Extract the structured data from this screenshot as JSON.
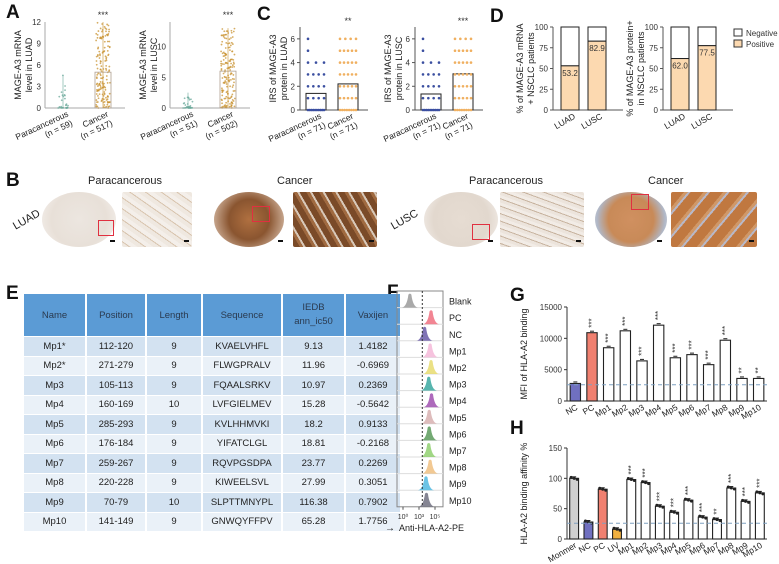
{
  "panels": {
    "A": {
      "letter": "A",
      "charts": [
        {
          "ylabel": [
            "MAGE-A3 mRNA",
            "level  in LUAD"
          ],
          "yticks": [
            "0",
            "3",
            "6",
            "9",
            "12"
          ],
          "ylim": [
            0,
            12
          ],
          "groups": [
            {
              "label": "Paracancerous",
              "n": "(n = 59)",
              "median": 0.1,
              "max": 4.6,
              "color": "#6aa89a"
            },
            {
              "label": "Cancer",
              "n": "(n = 517)",
              "median": 5.0,
              "max": 12,
              "color": "#c8912f"
            }
          ],
          "significance": "***"
        },
        {
          "ylabel": [
            "MAGE-A3 mRNA",
            "level  in LUSC"
          ],
          "yticks": [
            "0",
            "5",
            "10"
          ],
          "ylim": [
            0,
            14
          ],
          "groups": [
            {
              "label": "Paracancerous",
              "n": "(n = 51)",
              "median": 0.4,
              "max": 2.5,
              "color": "#6aa89a"
            },
            {
              "label": "Cancer",
              "n": "(n = 502)",
              "median": 6.0,
              "max": 13,
              "color": "#c8912f"
            }
          ],
          "significance": "***"
        }
      ]
    },
    "B": {
      "letter": "B",
      "groups": [
        {
          "row_label": "LUAD",
          "titles": [
            "Paracancerous",
            "Cancer"
          ]
        },
        {
          "row_label": "LUSC",
          "titles": [
            "Paracancerous",
            "Cancer"
          ]
        }
      ]
    },
    "C": {
      "letter": "C",
      "charts": [
        {
          "ylabel": [
            "IRS of MAGE-A3",
            "protein in LUAD"
          ],
          "yticks": [
            "0",
            "2",
            "4",
            "6"
          ],
          "ylim": [
            0,
            7
          ],
          "groups": [
            {
              "label": "Paracancerous",
              "n": "(n = 71)",
              "mean": 1.4,
              "color": "#3b4fa0"
            },
            {
              "label": "Cancer",
              "n": "(n = 71)",
              "mean": 2.2,
              "color": "#f0b060"
            }
          ],
          "significance": "**"
        },
        {
          "ylabel": [
            "IRS of MAGE-A3",
            "protein  in LUSC"
          ],
          "yticks": [
            "0",
            "2",
            "4",
            "6"
          ],
          "ylim": [
            0,
            7
          ],
          "groups": [
            {
              "label": "Paracancerous",
              "n": "(n = 71)",
              "mean": 1.35,
              "color": "#3b4fa0"
            },
            {
              "label": "Cancer",
              "n": "(n = 71)",
              "mean": 3.05,
              "color": "#f0b060"
            }
          ],
          "significance": "***"
        }
      ]
    },
    "D": {
      "letter": "D",
      "legend": [
        {
          "label": "Negative",
          "color": "#ffffff"
        },
        {
          "label": "Positive",
          "color": "#fcd9b0"
        }
      ],
      "charts": [
        {
          "ylabel": [
            "% of MAGE-A3 mRNA",
            "+ NSCLC patients"
          ],
          "yticks": [
            "0",
            "25",
            "50",
            "75",
            "100"
          ],
          "categories": [
            "LUAD",
            "LUSC"
          ],
          "positive": [
            53.2,
            82.9
          ],
          "labels": [
            "53.2",
            "82.9"
          ]
        },
        {
          "ylabel": [
            "% of MAGE-A3 protein+",
            "in NSCLC patients"
          ],
          "yticks": [
            "0",
            "25",
            "50",
            "75",
            "100"
          ],
          "categories": [
            "LUAD",
            "LUSC"
          ],
          "positive": [
            62.0,
            77.5
          ],
          "labels": [
            "62.0",
            "77.5"
          ]
        }
      ]
    },
    "E": {
      "letter": "E",
      "headers": [
        "Name",
        "Position",
        "Length",
        "Sequence",
        "IEDB\nann_ic50",
        "Vaxijen"
      ],
      "header_lines": [
        [
          "Name"
        ],
        [
          "Position"
        ],
        [
          "Length"
        ],
        [
          "Sequence"
        ],
        [
          "IEDB",
          "ann_ic50"
        ],
        [
          "Vaxijen"
        ]
      ],
      "rows": [
        [
          "Mp1*",
          "112-120",
          "9",
          "KVAELVHFL",
          "9.13",
          "1.4182"
        ],
        [
          "Mp2*",
          "271-279",
          "9",
          "FLWGPRALV",
          "11.96",
          "-0.6969"
        ],
        [
          "Mp3",
          "105-113",
          "9",
          "FQAALSRKV",
          "10.97",
          "0.2369"
        ],
        [
          "Mp4",
          "160-169",
          "10",
          "LVFGIELMEV",
          "15.28",
          "-0.5642"
        ],
        [
          "Mp5",
          "285-293",
          "9",
          "KVLHHMVKI",
          "18.2",
          "0.9133"
        ],
        [
          "Mp6",
          "176-184",
          "9",
          "YIFATCLGL",
          "18.81",
          "-0.2168"
        ],
        [
          "Mp7",
          "259-267",
          "9",
          "RQVPGSDPA",
          "23.77",
          "0.2269"
        ],
        [
          "Mp8",
          "220-228",
          "9",
          "KIWEELSVL",
          "27.99",
          "0.3051"
        ],
        [
          "Mp9",
          "70-79",
          "10",
          "SLPTTMNYPL",
          "116.38",
          "0.7902"
        ],
        [
          "Mp10",
          "141-149",
          "9",
          "GNWQYFFPV",
          "65.28",
          "1.7756"
        ]
      ]
    },
    "F": {
      "letter": "F",
      "xlabel": "Anti-HLA-A2-PE",
      "xticks": [
        "10⁰",
        "10³",
        "10⁵"
      ],
      "samples": [
        {
          "label": "Blank",
          "peak": 0.28,
          "color": "#9a9a9a"
        },
        {
          "label": "PC",
          "peak": 0.74,
          "color": "#f07080"
        },
        {
          "label": "NC",
          "peak": 0.6,
          "color": "#6a5aa8"
        },
        {
          "label": "Mp1",
          "peak": 0.72,
          "color": "#f4b8d8"
        },
        {
          "label": "Mp2",
          "peak": 0.74,
          "color": "#e8dc70"
        },
        {
          "label": "Mp3",
          "peak": 0.69,
          "color": "#3aa8a0"
        },
        {
          "label": "Mp4",
          "peak": 0.75,
          "color": "#a050b0"
        },
        {
          "label": "Mp5",
          "peak": 0.7,
          "color": "#d8b0b0"
        },
        {
          "label": "Mp6",
          "peak": 0.7,
          "color": "#5a9a5a"
        },
        {
          "label": "Mp7",
          "peak": 0.69,
          "color": "#90d070"
        },
        {
          "label": "Mp8",
          "peak": 0.72,
          "color": "#f0c080"
        },
        {
          "label": "Mp9",
          "peak": 0.63,
          "color": "#50b8e0"
        },
        {
          "label": "Mp10",
          "peak": 0.64,
          "color": "#707080"
        }
      ]
    },
    "G": {
      "letter": "G",
      "chart_data": {
        "type": "bar",
        "ylabel": "MFI of HLA-A2 binding",
        "ylim": [
          0,
          15000
        ],
        "yticks": [
          "0",
          "5000",
          "10000",
          "15000"
        ],
        "categories": [
          "NC",
          "PC",
          "Mp1",
          "Mp2",
          "Mp3",
          "Mp4",
          "Mp5",
          "Mp6",
          "Mp7",
          "Mp8",
          "Mp9",
          "Mp10"
        ],
        "values": [
          2800,
          10900,
          8500,
          11200,
          6400,
          12100,
          6900,
          7400,
          5800,
          9700,
          3600,
          3600
        ],
        "significance": [
          "",
          "***",
          "***",
          "***",
          "***",
          "***",
          "***",
          "***",
          "***",
          "***",
          "**",
          "**"
        ],
        "colors": [
          "#7070c0",
          "#f08070",
          "#ffffff",
          "#ffffff",
          "#ffffff",
          "#ffffff",
          "#ffffff",
          "#ffffff",
          "#ffffff",
          "#ffffff",
          "#ffffff",
          "#ffffff"
        ],
        "baseline": 2600
      }
    },
    "H": {
      "letter": "H",
      "chart_data": {
        "type": "bar",
        "ylabel": "HLA-A2 binding affinity %",
        "ylim": [
          0,
          150
        ],
        "yticks": [
          "0",
          "50",
          "100",
          "150"
        ],
        "categories": [
          "Monmer",
          "NC",
          "PC",
          "UV",
          "Mp1",
          "Mp2",
          "Mp3",
          "Mp4",
          "Mp5",
          "Mp6",
          "Mp7",
          "Mp8",
          "Mp9",
          "Mp10"
        ],
        "values": [
          100,
          28,
          82,
          16,
          98,
          93,
          54,
          44,
          64,
          36,
          32,
          84,
          62,
          76
        ],
        "significance": [
          "",
          "",
          "",
          "",
          "***",
          "***",
          "***",
          "***",
          "***",
          "***",
          "**",
          "***",
          "***",
          "***"
        ],
        "colors": [
          "#d0d0d0",
          "#7070c0",
          "#f08070",
          "#f0b040",
          "#ffffff",
          "#ffffff",
          "#ffffff",
          "#ffffff",
          "#ffffff",
          "#ffffff",
          "#ffffff",
          "#ffffff",
          "#ffffff",
          "#ffffff"
        ],
        "baseline": 26
      }
    }
  }
}
